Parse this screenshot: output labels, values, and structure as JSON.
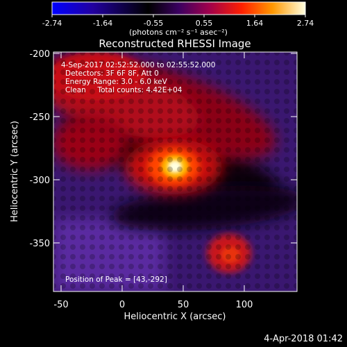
{
  "colorbar": {
    "ticks": [
      "-2.74",
      "-1.64",
      "-0.55",
      "0.55",
      "1.64",
      "2.74"
    ],
    "units_label": "(photons cm⁻² s⁻¹ asec⁻²)",
    "colors": [
      "#0000ff",
      "#2a0090",
      "#000000",
      "#3a0070",
      "#a00050",
      "#ff2a00",
      "#ffb000",
      "#ffffd8"
    ]
  },
  "image": {
    "title": "Reconstructed RHESSI Image",
    "annotation_lines": [
      "4-Sep-2017 02:52:52.000 to 02:55:52.000",
      "Detectors: 3F 6F 8F, Att 0",
      "Energy Range: 3.0 - 6.0 keV",
      "Clean     Total counts: 4.42E+04"
    ],
    "peak_label": "Position of Peak = [43,-292]"
  },
  "axes": {
    "xlabel": "Heliocentric X (arcsec)",
    "ylabel": "Heliocentric Y (arcsec)",
    "xticks": [
      "-50",
      "0",
      "50",
      "100"
    ],
    "yticks": [
      "-200",
      "-250",
      "-300",
      "-350"
    ],
    "xrange": [
      -50,
      140
    ],
    "yrange": [
      -200,
      -390
    ]
  },
  "footer": {
    "date": "4-Apr-2018 01:42"
  }
}
